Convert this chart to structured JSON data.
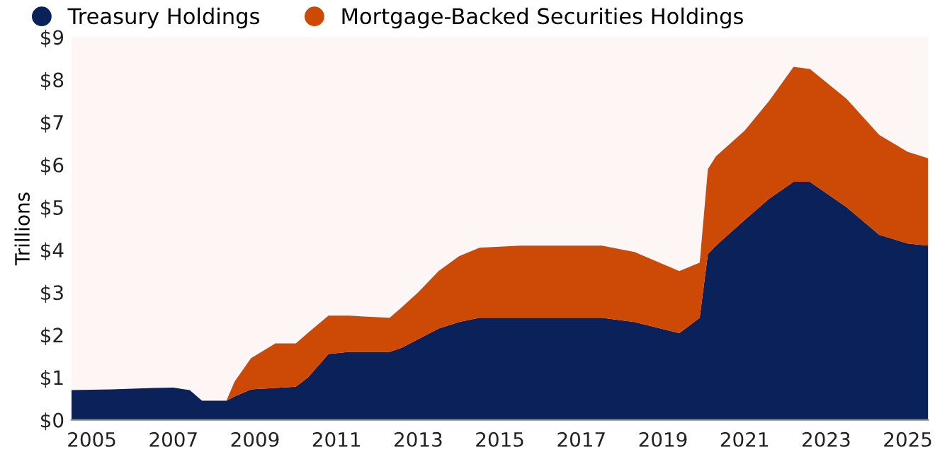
{
  "chart_data": {
    "type": "area",
    "stacked": true,
    "ylabel": "Trillions",
    "x": [
      2004.5,
      2005.5,
      2006.5,
      2007.0,
      2007.4,
      2007.7,
      2008.3,
      2008.5,
      2008.9,
      2009.5,
      2010.0,
      2010.3,
      2010.8,
      2011.3,
      2012.3,
      2012.6,
      2013.0,
      2013.5,
      2014.0,
      2014.5,
      2015.5,
      2017.5,
      2018.3,
      2019.4,
      2019.9,
      2020.1,
      2020.3,
      2021.0,
      2021.6,
      2022.2,
      2022.6,
      2023.5,
      2024.3,
      2025.0,
      2025.5
    ],
    "series": [
      {
        "name": "Treasury Holdings",
        "color": "#0b2159",
        "values": [
          0.7,
          0.72,
          0.75,
          0.76,
          0.7,
          0.45,
          0.45,
          0.55,
          0.72,
          0.75,
          0.78,
          1.0,
          1.55,
          1.6,
          1.6,
          1.7,
          1.9,
          2.15,
          2.3,
          2.4,
          2.4,
          2.4,
          2.3,
          2.04,
          2.4,
          3.9,
          4.1,
          4.7,
          5.2,
          5.6,
          5.6,
          5.0,
          4.35,
          4.15,
          4.1
        ]
      },
      {
        "name": "Mortgage-Backed Securities Holdings",
        "color": "#cc4a06",
        "values": [
          0,
          0,
          0,
          0,
          0,
          0,
          0,
          0.35,
          0.73,
          1.05,
          1.02,
          1.05,
          0.9,
          0.85,
          0.8,
          0.95,
          1.1,
          1.35,
          1.55,
          1.65,
          1.7,
          1.7,
          1.65,
          1.46,
          1.3,
          2.0,
          2.1,
          2.1,
          2.3,
          2.7,
          2.65,
          2.55,
          2.35,
          2.15,
          2.05
        ]
      }
    ],
    "xlim": [
      2004.5,
      2025.5
    ],
    "xticks": [
      2005,
      2007,
      2009,
      2011,
      2013,
      2015,
      2017,
      2019,
      2021,
      2023,
      2025
    ],
    "ylim": [
      0,
      9
    ],
    "yticks": [
      {
        "value": 0,
        "label": "$0"
      },
      {
        "value": 1,
        "label": "$1"
      },
      {
        "value": 2,
        "label": "$2"
      },
      {
        "value": 3,
        "label": "$3"
      },
      {
        "value": 4,
        "label": "$4"
      },
      {
        "value": 5,
        "label": "$5"
      },
      {
        "value": 6,
        "label": "$6"
      },
      {
        "value": 7,
        "label": "$7"
      },
      {
        "value": 8,
        "label": "$8"
      },
      {
        "value": 9,
        "label": "$9"
      }
    ],
    "grid": false,
    "legend": "top left"
  }
}
